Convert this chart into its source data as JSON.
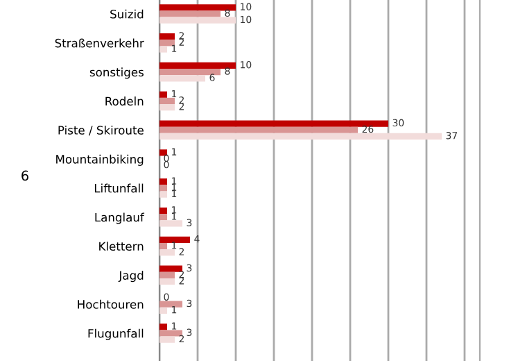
{
  "chart_data": {
    "type": "bar",
    "orientation": "horizontal",
    "categories": [
      "Suizid",
      "Straßenverkehr",
      "sonstiges",
      "Rodeln",
      "Piste / Skiroute",
      "Mountainbiking",
      "Liftunfall",
      "Langlauf",
      "Klettern",
      "Jagd",
      "Hochtouren",
      "Flugunfall"
    ],
    "series": [
      {
        "color": "#c00000",
        "values": [
          10,
          2,
          10,
          1,
          30,
          1,
          1,
          1,
          4,
          3,
          0,
          1
        ]
      },
      {
        "color": "#d99594",
        "values": [
          8,
          2,
          8,
          2,
          26,
          0,
          1,
          1,
          1,
          2,
          3,
          3
        ]
      },
      {
        "color": "#f2dcdb",
        "values": [
          10,
          1,
          6,
          2,
          37,
          0,
          1,
          3,
          2,
          2,
          1,
          2
        ]
      }
    ],
    "xlim": [
      0,
      42
    ],
    "xticks": [
      {
        "value": 0,
        "label": null
      },
      {
        "value": 5,
        "label": null
      },
      {
        "value": 10,
        "label": null
      },
      {
        "value": 15,
        "label": null
      },
      {
        "value": 20,
        "label": null
      },
      {
        "value": 25,
        "label": null
      },
      {
        "value": 30,
        "label": null
      },
      {
        "value": 35,
        "label": null
      },
      {
        "value": 40,
        "label": null
      }
    ],
    "grid": "x",
    "data_labels": true,
    "legend": false,
    "annotations": [
      "6"
    ]
  }
}
